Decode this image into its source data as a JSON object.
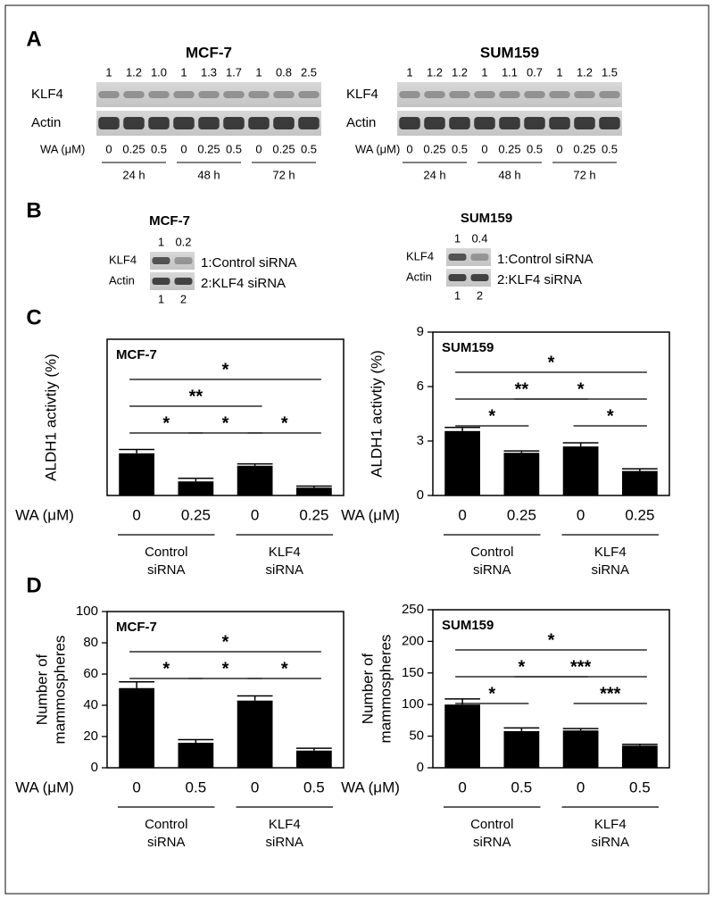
{
  "panel_labels": [
    "A",
    "B",
    "C",
    "D"
  ],
  "blots": [
    {
      "title": "MCF-7",
      "ratios": [
        "1",
        "1.2",
        "1.0",
        "1",
        "1.3",
        "1.7",
        "1",
        "0.8",
        "2.5"
      ],
      "rows": [
        "KLF4",
        "Actin"
      ],
      "dose_label": "WA (μM)",
      "doses": [
        "0",
        "0.25",
        "0.5",
        "0",
        "0.25",
        "0.5",
        "0",
        "0.25",
        "0.5"
      ],
      "times": [
        "24 h",
        "48 h",
        "72 h"
      ]
    },
    {
      "title": "SUM159",
      "ratios": [
        "1",
        "1.2",
        "1.2",
        "1",
        "1.1",
        "0.7",
        "1",
        "1.2",
        "1.5"
      ],
      "rows": [
        "KLF4",
        "Actin"
      ],
      "dose_label": "WA (μM)",
      "doses": [
        "0",
        "0.25",
        "0.5",
        "0",
        "0.25",
        "0.5",
        "0",
        "0.25",
        "0.5"
      ],
      "times": [
        "24 h",
        "48 h",
        "72 h"
      ]
    }
  ],
  "knockdown": [
    {
      "title": "MCF-7",
      "ratios": [
        "1",
        "0.2"
      ],
      "rows": [
        "KLF4",
        "Actin"
      ],
      "legend": [
        "1:Control siRNA",
        "2:KLF4 siRNA"
      ],
      "lanes": [
        "1",
        "2"
      ]
    },
    {
      "title": "SUM159",
      "ratios": [
        "1",
        "0.4"
      ],
      "rows": [
        "KLF4",
        "Actin"
      ],
      "legend": [
        "1:Control siRNA",
        "2:KLF4 siRNA"
      ],
      "lanes": [
        "1",
        "2"
      ]
    }
  ],
  "chart_data": [
    {
      "type": "bar",
      "title": "MCF-7",
      "ylabel": [
        "ALDH1 activtiy (%)"
      ],
      "xlabel": "WA (μM)",
      "categories": [
        "0",
        "0.25",
        "0",
        "0.25"
      ],
      "values": [
        1.35,
        0.45,
        0.95,
        0.25
      ],
      "errors": [
        0.12,
        0.1,
        0.06,
        0.05
      ],
      "color": "#000000",
      "ylim": [
        0,
        5
      ],
      "groups": [
        [
          "Control",
          "siRNA"
        ],
        [
          "KLF4",
          "siRNA"
        ]
      ],
      "annotations": [
        {
          "from": 0,
          "to": 3,
          "label": "*"
        },
        {
          "from": 0,
          "to": 2,
          "label": "**"
        },
        {
          "from": 0,
          "to": 1,
          "label": "*"
        },
        {
          "from": 1,
          "to": 2,
          "label": "*"
        },
        {
          "from": 2,
          "to": 3,
          "label": "*"
        }
      ]
    },
    {
      "type": "bar",
      "title": "SUM159",
      "ylabel": [
        "ALDH1 activtiy (%)"
      ],
      "xlabel": "WA (μM)",
      "categories": [
        "0",
        "0.25",
        "0",
        "0.25"
      ],
      "values": [
        3.55,
        2.35,
        2.7,
        1.35
      ],
      "errors": [
        0.2,
        0.1,
        0.2,
        0.12
      ],
      "color": "#000000",
      "ylim": [
        0,
        9
      ],
      "yticks": [
        0,
        3,
        6,
        9
      ],
      "groups": [
        [
          "Control",
          "siRNA"
        ],
        [
          "KLF4",
          "siRNA"
        ]
      ],
      "annotations": [
        {
          "from": 0,
          "to": 3,
          "label": "*"
        },
        {
          "from": 0,
          "to": 2,
          "label": "**"
        },
        {
          "from": 0,
          "to": 1,
          "label": "*"
        },
        {
          "from": 1,
          "to": 3,
          "label": "*"
        },
        {
          "from": 2,
          "to": 3,
          "label": "*"
        }
      ]
    },
    {
      "type": "bar",
      "title": "MCF-7",
      "ylabel": [
        "Number of",
        "mammospheres"
      ],
      "xlabel": "WA (μM)",
      "categories": [
        "0",
        "0.5",
        "0",
        "0.5"
      ],
      "values": [
        51,
        16,
        43,
        11
      ],
      "errors": [
        4,
        2,
        3,
        1.5
      ],
      "color": "#000000",
      "ylim": [
        0,
        100
      ],
      "yticks": [
        0,
        20,
        40,
        60,
        80,
        100
      ],
      "groups": [
        [
          "Control",
          "siRNA"
        ],
        [
          "KLF4",
          "siRNA"
        ]
      ],
      "annotations": [
        {
          "from": 0,
          "to": 3,
          "label": "*"
        },
        {
          "from": 0,
          "to": 1,
          "label": "*"
        },
        {
          "from": 1,
          "to": 2,
          "label": "*"
        },
        {
          "from": 2,
          "to": 3,
          "label": "*"
        }
      ]
    },
    {
      "type": "bar",
      "title": "SUM159",
      "ylabel": [
        "Number of",
        "mammospheres"
      ],
      "xlabel": "WA (μM)",
      "categories": [
        "0",
        "0.5",
        "0",
        "0.5"
      ],
      "values": [
        100,
        58,
        59,
        35
      ],
      "errors": [
        9,
        5,
        3,
        2
      ],
      "color": "#000000",
      "ylim": [
        0,
        250
      ],
      "yticks": [
        0,
        50,
        100,
        150,
        200,
        250
      ],
      "groups": [
        [
          "Control",
          "siRNA"
        ],
        [
          "KLF4",
          "siRNA"
        ]
      ],
      "annotations": [
        {
          "from": 0,
          "to": 3,
          "label": "*"
        },
        {
          "from": 0,
          "to": 2,
          "label": "*"
        },
        {
          "from": 0,
          "to": 1,
          "label": "*"
        },
        {
          "from": 1,
          "to": 3,
          "label": "***"
        },
        {
          "from": 2,
          "to": 3,
          "label": "***"
        }
      ]
    }
  ]
}
